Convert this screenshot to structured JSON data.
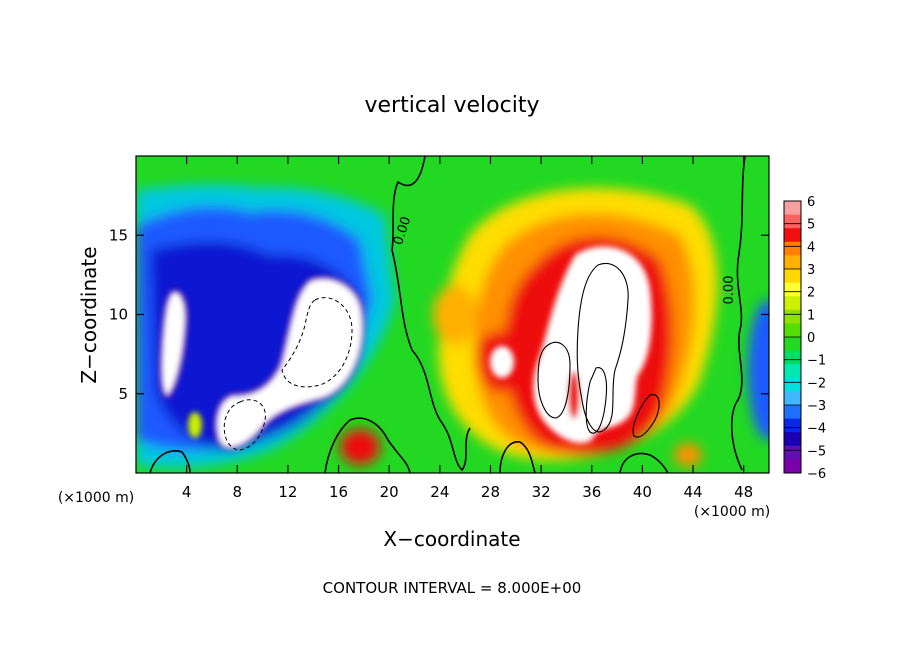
{
  "chart_data": {
    "type": "heatmap",
    "title": "vertical velocity",
    "xlabel": "X−coordinate",
    "ylabel": "Z−coordinate",
    "x_unit_label_left": "(×1000 m)",
    "x_unit_label_right": "(×1000 m)",
    "footer": "CONTOUR INTERVAL = 8.000E+00",
    "xlim": [
      0,
      50
    ],
    "ylim": [
      0,
      20
    ],
    "x_ticks": [
      4,
      8,
      12,
      16,
      20,
      24,
      28,
      32,
      36,
      40,
      44,
      48
    ],
    "x_tick_labels": [
      "4",
      "8",
      "12",
      "16",
      "20",
      "24",
      "28",
      "32",
      "36",
      "40",
      "44",
      "48"
    ],
    "y_ticks": [
      5,
      10,
      15
    ],
    "y_tick_labels": [
      "5",
      "10",
      "15"
    ],
    "contour_labels": [
      "0.00",
      "0.00"
    ],
    "colorbar": {
      "range": [
        -6,
        6
      ],
      "ticks": [
        "6",
        "5",
        "4",
        "3",
        "2",
        "1",
        "0",
        "−1",
        "−2",
        "−3",
        "−4",
        "−5",
        "−6"
      ],
      "colors": [
        "#f7a0a0",
        "#ff6060",
        "#ee1010",
        "#ff8000",
        "#ffb000",
        "#ffd800",
        "#ffff33",
        "#ccf000",
        "#90e000",
        "#55dd00",
        "#22d822",
        "#00dd66",
        "#00e8b0",
        "#00e0e0",
        "#40b8ff",
        "#2070ff",
        "#0a28e8",
        "#1a00b0",
        "#6010b0",
        "#7a00a8"
      ]
    },
    "features": [
      {
        "x": 6.5,
        "z": 8,
        "w": -7
      },
      {
        "x": 13,
        "z": 8.5,
        "w": -8
      },
      {
        "x": 15,
        "z": 6,
        "w": -5
      },
      {
        "x": 4,
        "z": 11,
        "w": -4.5
      },
      {
        "x": 10,
        "z": 14,
        "w": -4
      },
      {
        "x": 3,
        "z": 14,
        "w": -3
      },
      {
        "x": 35.5,
        "z": 7.5,
        "w": 9
      },
      {
        "x": 31,
        "z": 7,
        "w": 6
      },
      {
        "x": 41,
        "z": 4,
        "w": 6
      },
      {
        "x": 37,
        "z": 14,
        "w": 3.5
      },
      {
        "x": 30,
        "z": 10,
        "w": 2.5
      },
      {
        "x": 18,
        "z": 2,
        "w": 5
      },
      {
        "x": 44,
        "z": 1.5,
        "w": 3.5
      },
      {
        "x": 5,
        "z": 3,
        "w": 1.5
      }
    ]
  }
}
